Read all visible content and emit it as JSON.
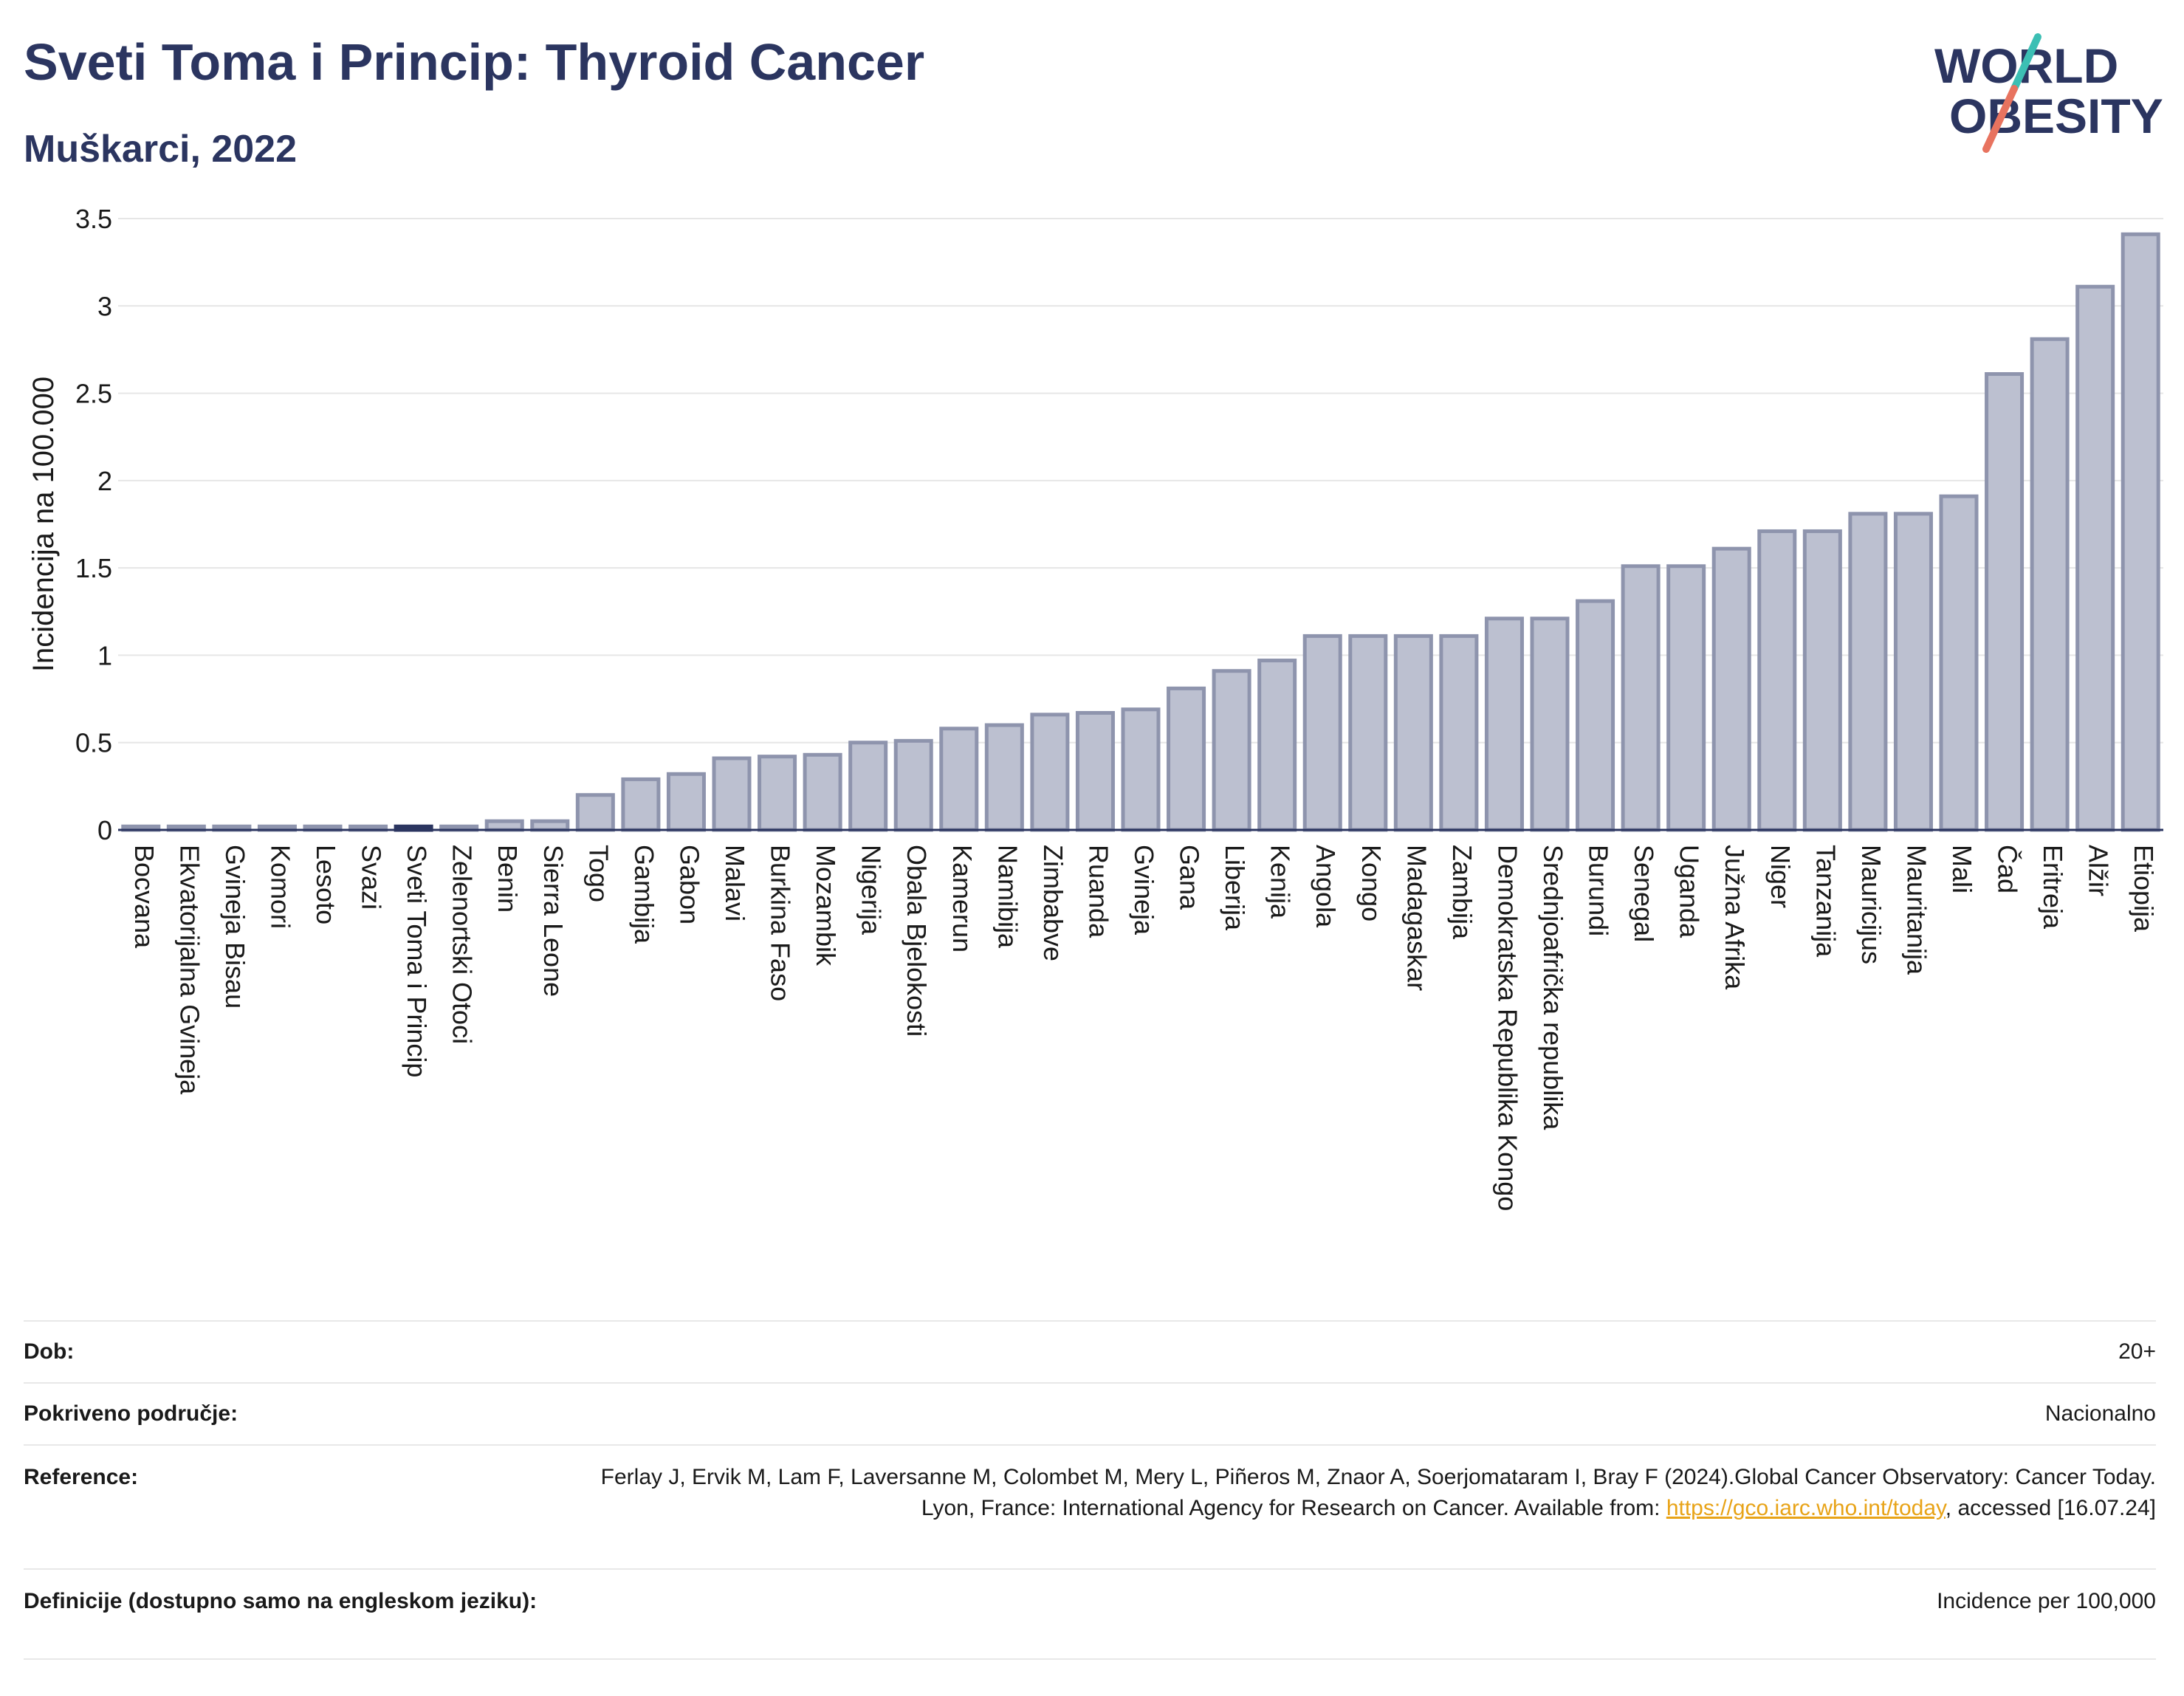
{
  "header": {
    "title": "Sveti Toma i Princip: Thyroid Cancer",
    "subtitle": "Muškarci, 2022"
  },
  "logo": {
    "line1": "WORLD",
    "line2": "OBESITY",
    "slash_colors": [
      "#3cbfb4",
      "#e8735f"
    ]
  },
  "colors": {
    "bar_fill": "#bcc0d0",
    "bar_stroke": "#8e94ad",
    "highlight": "#2b3560",
    "text": "#2b3560"
  },
  "chart_data": {
    "type": "bar",
    "ylabel": "Incidencija na 100.000",
    "ylim": [
      0,
      3.5
    ],
    "yticks": [
      0,
      0.5,
      1,
      1.5,
      2,
      2.5,
      3,
      3.5
    ],
    "ytick_labels": [
      "0",
      "0.5",
      "1",
      "1.5",
      "2",
      "2.5",
      "3",
      "3.5"
    ],
    "highlight": "Sveti Toma i Princip",
    "categories": [
      "Bocvana",
      "Ekvatorijalna Gvineja",
      "Gvineja Bisau",
      "Komori",
      "Lesoto",
      "Svazi",
      "Sveti Toma i Princip",
      "Zelenortski Otoci",
      "Benin",
      "Sierra Leone",
      "Togo",
      "Gambija",
      "Gabon",
      "Malavi",
      "Burkina Faso",
      "Mozambik",
      "Nigerija",
      "Obala Bjelokosti",
      "Kamerun",
      "Namibija",
      "Zimbabve",
      "Ruanda",
      "Gvineja",
      "Gana",
      "Liberija",
      "Kenija",
      "Angola",
      "Kongo",
      "Madagaskar",
      "Zambija",
      "Demokratska Republika Kongo",
      "Srednjoafrička republika",
      "Burundi",
      "Senegal",
      "Uganda",
      "Južna Afrika",
      "Niger",
      "Tanzanija",
      "Mauricijus",
      "Mauritanija",
      "Mali",
      "Čad",
      "Eritreja",
      "Alžir",
      "Etiopija"
    ],
    "values": [
      0.02,
      0.02,
      0.02,
      0.02,
      0.02,
      0.02,
      0.02,
      0.02,
      0.05,
      0.05,
      0.2,
      0.29,
      0.32,
      0.41,
      0.42,
      0.43,
      0.5,
      0.51,
      0.58,
      0.6,
      0.66,
      0.67,
      0.69,
      0.81,
      0.91,
      0.97,
      1.11,
      1.11,
      1.11,
      1.11,
      1.21,
      1.21,
      1.31,
      1.51,
      1.51,
      1.61,
      1.71,
      1.71,
      1.81,
      1.81,
      1.91,
      2.61,
      2.81,
      3.11,
      3.41
    ]
  },
  "info": {
    "rows": [
      {
        "label": "Dob:",
        "value": "20+"
      },
      {
        "label": "Pokriveno područje:",
        "value": "Nacionalno"
      },
      {
        "label": "Reference:",
        "value_pre": "Ferlay J, Ervik M, Lam F, Laversanne M, Colombet M, Mery L, Piñeros M, Znaor A, Soerjomataram I, Bray F (2024).Global Cancer Observatory: Cancer Today. Lyon, France: International Agency for Research on Cancer. Available from: ",
        "link": "https://gco.iarc.who.int/today",
        "value_post": ", accessed [16.07.24]"
      },
      {
        "label": "Definicije (dostupno samo na engleskom jeziku):",
        "value": "Incidence per 100,000"
      }
    ]
  }
}
